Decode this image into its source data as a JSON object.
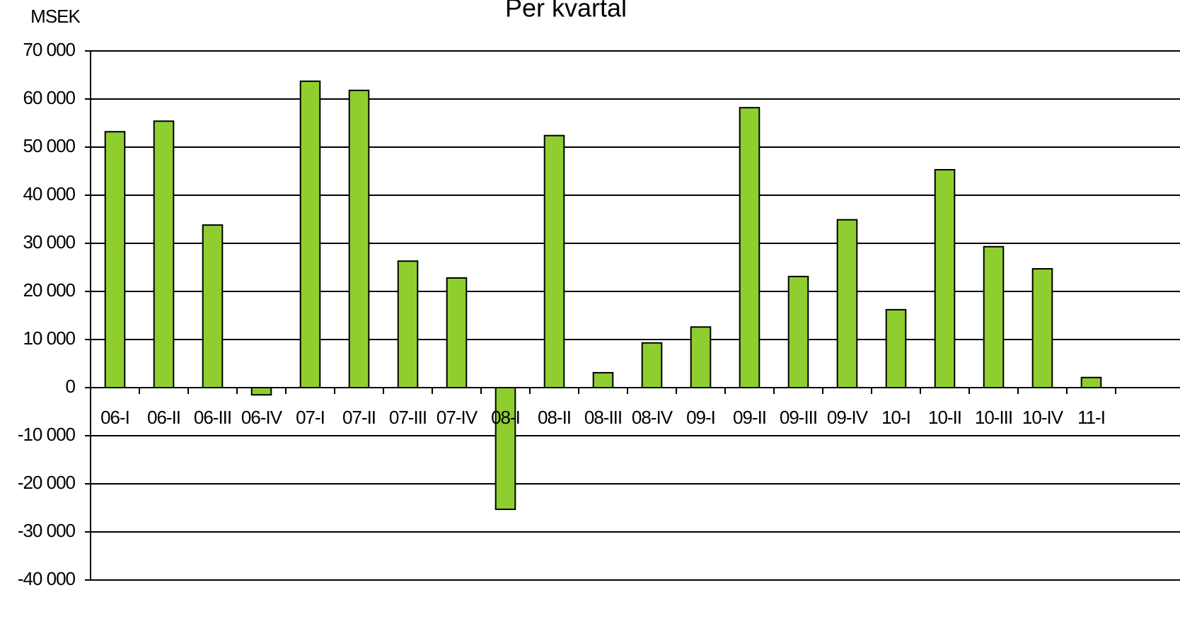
{
  "chart_data": {
    "type": "bar",
    "title": "Per kvartal",
    "y_axis_label": "MSEK",
    "categories": [
      "06-I",
      "06-II",
      "06-III",
      "06-IV",
      "07-I",
      "07-II",
      "07-III",
      "07-IV",
      "08-I",
      "08-II",
      "08-III",
      "08-IV",
      "09-I",
      "09-II",
      "09-III",
      "09-IV",
      "10-I",
      "10-II",
      "10-III",
      "10-IV",
      "11-I"
    ],
    "values": [
      53200,
      55400,
      33800,
      -1500,
      63700,
      61800,
      26300,
      22800,
      -25300,
      52400,
      3100,
      9300,
      12600,
      58200,
      23100,
      34900,
      16200,
      45300,
      29300,
      24700,
      2100
    ],
    "color": "#8fce2f",
    "ylim": [
      -40000,
      70000
    ],
    "yticks": [
      {
        "value": -40000,
        "label": "-40 000"
      },
      {
        "value": -30000,
        "label": "-30 000"
      },
      {
        "value": -20000,
        "label": "-20 000"
      },
      {
        "value": -10000,
        "label": "-10 000"
      },
      0,
      {
        "value": 10000,
        "label": "10 000"
      },
      {
        "value": 20000,
        "label": "20 000"
      },
      {
        "value": 30000,
        "label": "30 000"
      },
      {
        "value": 40000,
        "label": "40 000"
      },
      {
        "value": 50000,
        "label": "50 000"
      },
      {
        "value": 60000,
        "label": "60 000"
      },
      {
        "value": 70000,
        "label": "70 000"
      }
    ],
    "grid": true
  }
}
